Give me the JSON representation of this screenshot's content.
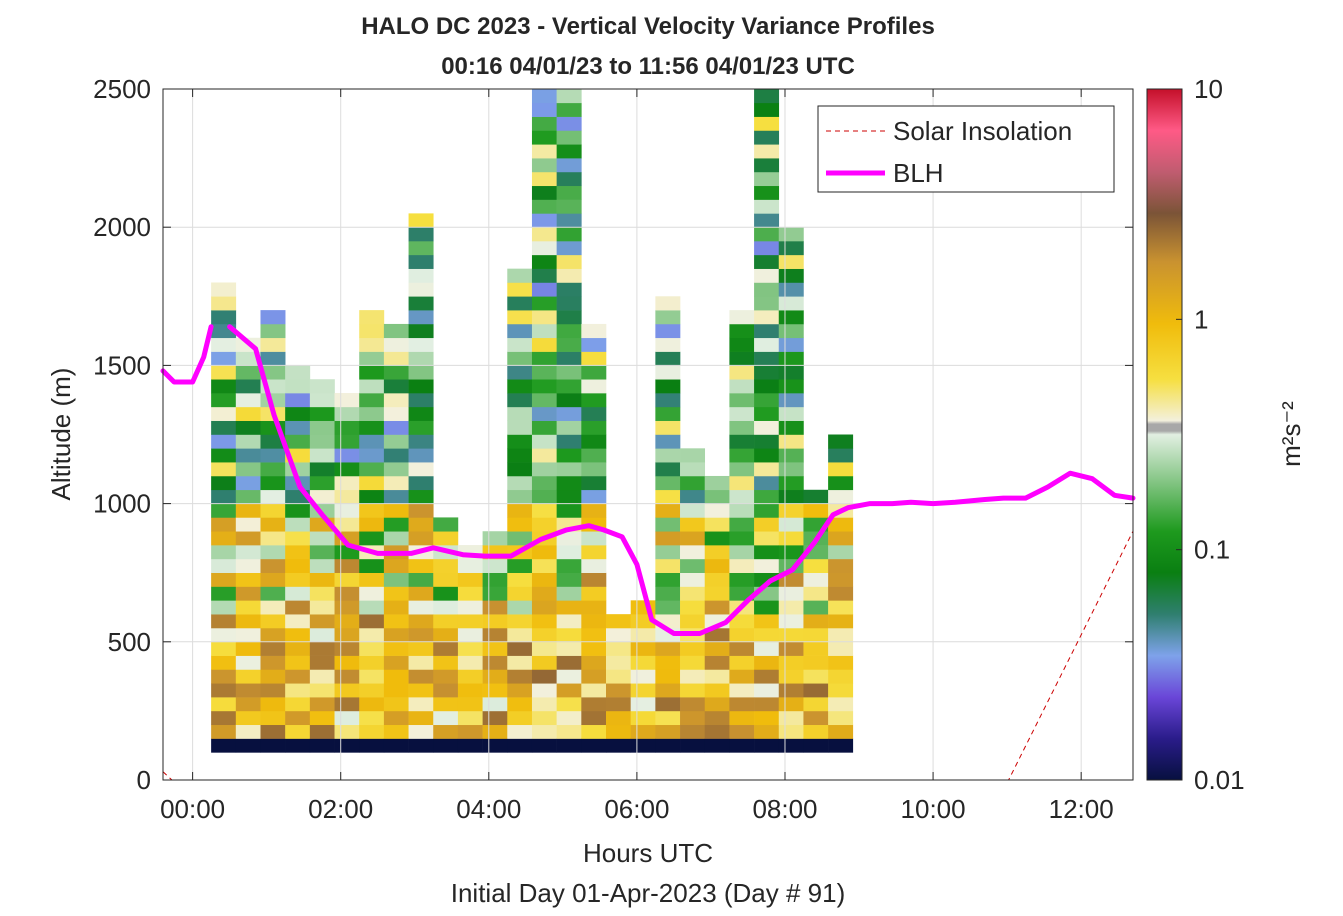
{
  "title_line1": "HALO DC 2023 - Vertical Velocity Variance Profiles",
  "title_line2": "00:16 04/01/23 to 11:56 04/01/23  UTC",
  "xlabel": "Hours UTC",
  "subtitle": "Initial Day 01-Apr-2023 (Day # 91)",
  "ylabel": "Altitude (m)",
  "colorbar_label": "m²s⁻²",
  "legend": {
    "solar": "Solar Insolation",
    "blh": "BLH"
  },
  "colors": {
    "blh": "#ff00ff",
    "solar": "#cc0000",
    "grid": "#dcdcdc",
    "axes": "#262626"
  },
  "chart_data": {
    "type": "heatmap",
    "title": "HALO DC 2023 - Vertical Velocity Variance Profiles",
    "xlabel": "Hours UTC",
    "ylabel": "Altitude (m)",
    "x_unit": "hours UTC",
    "xlim": [
      -0.4,
      12.7
    ],
    "ylim": [
      0,
      2500
    ],
    "x_ticks": [
      0,
      2,
      4,
      6,
      8,
      10,
      12
    ],
    "x_tick_labels": [
      "00:00",
      "02:00",
      "04:00",
      "06:00",
      "08:00",
      "10:00",
      "12:00"
    ],
    "y_ticks": [
      0,
      500,
      1000,
      1500,
      2000,
      2500
    ],
    "y_tick_labels": [
      "0",
      "500",
      "1000",
      "1500",
      "2000",
      "2500"
    ],
    "grid": true,
    "legend_position": "top-right",
    "colorbar": {
      "scale": "log",
      "range": [
        0.01,
        10
      ],
      "tick_values": [
        0.01,
        0.1,
        1,
        10
      ],
      "tick_labels": [
        "0.01",
        "0.1",
        "1",
        "10"
      ],
      "label": "m²s⁻²"
    },
    "heatmap": {
      "x_start": 0.25,
      "x_step": 0.3333,
      "x_count": 26,
      "y_start": 100,
      "y_step": 50,
      "y_count": 49,
      "value_unit": "m²s⁻²",
      "layers": [
        {
          "top": 150,
          "min": 0.01,
          "max": 0.01
        },
        {
          "top": 600,
          "min": 0.3,
          "max": 2.5
        },
        {
          "top": 1000,
          "min": 0.1,
          "max": 2.0
        },
        {
          "top": 2500,
          "min": 0.03,
          "max": 0.6
        }
      ],
      "column_tops": [
        1800,
        1600,
        1700,
        1500,
        1450,
        1400,
        1700,
        1650,
        2050,
        950,
        850,
        900,
        1850,
        2500,
        2500,
        1650,
        600,
        650,
        1750,
        1200,
        1100,
        1700,
        2500,
        2000,
        1050,
        1250
      ]
    },
    "series": [
      {
        "name": "BLH",
        "x": [
          -0.4,
          -0.25,
          0.0,
          0.15,
          0.25
        ],
        "y": [
          1480,
          1440,
          1440,
          1530,
          1640
        ]
      },
      {
        "name": "BLH",
        "x": [
          0.5,
          0.85,
          1.1,
          1.45,
          1.75,
          2.1,
          2.5,
          2.95,
          3.25,
          3.65,
          3.95,
          4.3,
          4.7,
          5.05,
          5.35,
          5.55,
          5.8,
          6.0,
          6.2,
          6.5,
          6.85,
          7.2,
          7.5,
          7.8,
          8.1,
          8.4,
          8.65,
          8.85,
          9.15,
          9.45,
          9.7,
          10.0,
          10.3,
          10.7,
          10.95,
          11.25,
          11.55,
          11.85,
          12.15,
          12.45,
          12.7
        ],
        "y": [
          1640,
          1560,
          1320,
          1060,
          960,
          850,
          820,
          820,
          840,
          815,
          810,
          810,
          870,
          905,
          920,
          905,
          880,
          780,
          580,
          530,
          530,
          570,
          650,
          720,
          760,
          860,
          960,
          985,
          1000,
          1000,
          1005,
          1000,
          1005,
          1015,
          1020,
          1020,
          1060,
          1110,
          1090,
          1030,
          1020
        ]
      },
      {
        "name": "Solar Insolation",
        "x": [
          -0.4,
          -0.28,
          11.02,
          12.7
        ],
        "y": [
          30,
          0,
          0,
          900
        ]
      }
    ]
  }
}
